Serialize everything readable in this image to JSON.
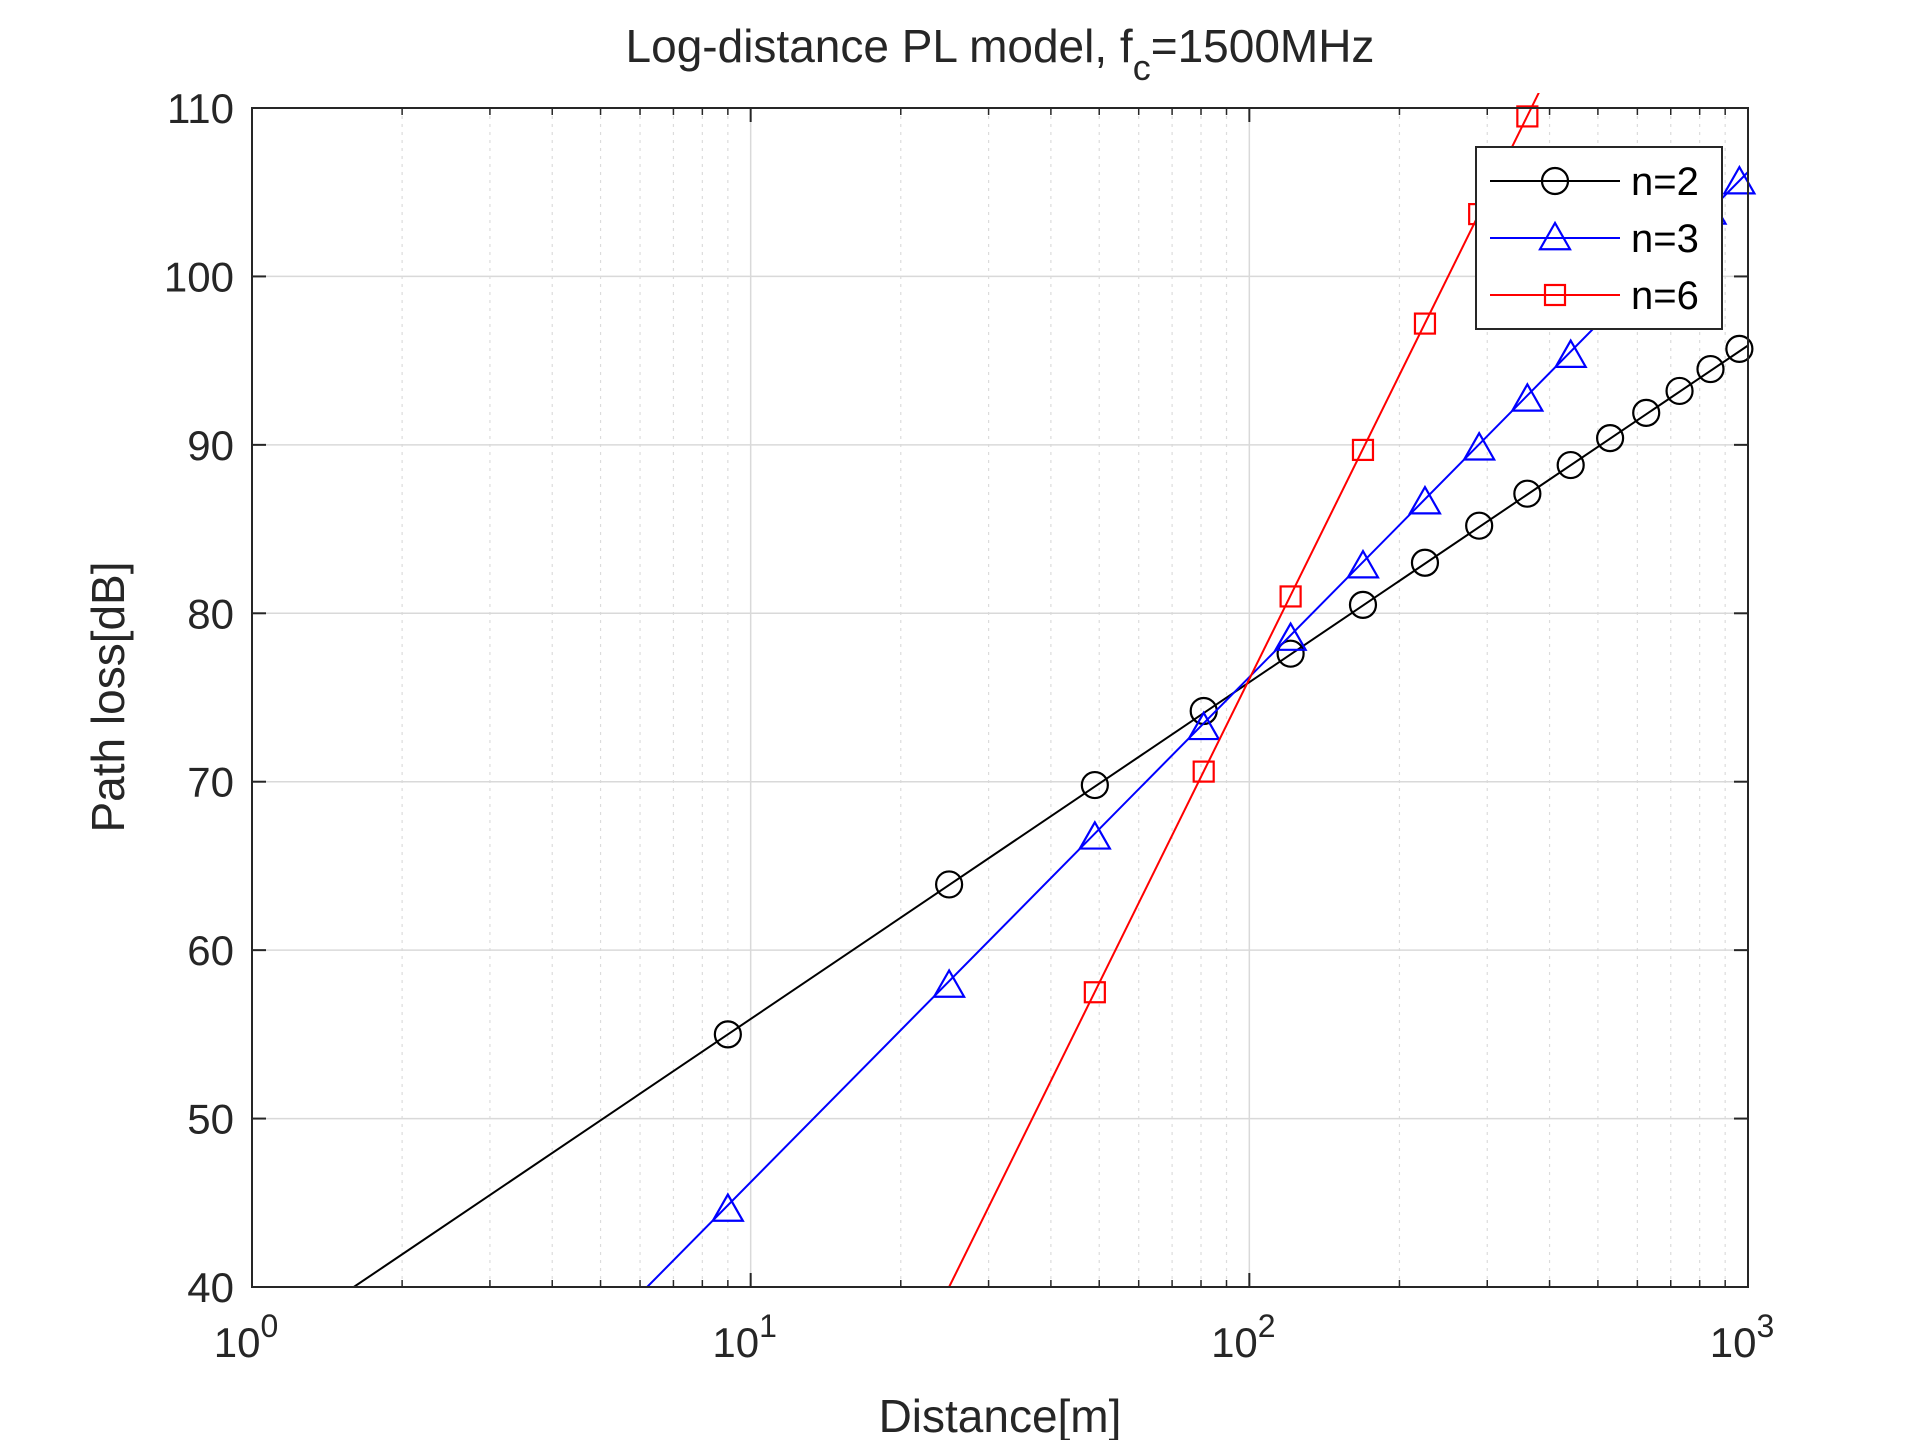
{
  "chart_data": {
    "type": "line",
    "title": "Log-distance PL model, f",
    "title_sub": "c",
    "title_tail": "=1500MHz",
    "xlabel": "Distance[m]",
    "ylabel": "Path loss[dB]",
    "xscale": "log",
    "xlim": [
      1,
      1000
    ],
    "ylim": [
      40,
      110
    ],
    "grid": true,
    "minor_grid": true,
    "x_ticks": [
      1,
      10,
      100,
      1000
    ],
    "x_tick_base": "10",
    "x_tick_exponents": [
      "0",
      "1",
      "2",
      "3"
    ],
    "y_ticks": [
      40,
      50,
      60,
      70,
      80,
      90,
      100,
      110
    ],
    "y_tick_labels": [
      "40",
      "50",
      "60",
      "70",
      "80",
      "90",
      "100",
      "110"
    ],
    "legend_position": "top-right",
    "series": [
      {
        "name": "n=2",
        "color": "#000000",
        "marker": "circle",
        "line_x": [
          1.6,
          1000
        ],
        "line_y": [
          40,
          95.9
        ],
        "marker_x": [
          9,
          25,
          49,
          81,
          121,
          169,
          225,
          289,
          361,
          441,
          529,
          625,
          729,
          841,
          961
        ],
        "marker_y": [
          55.0,
          63.9,
          69.8,
          74.2,
          77.6,
          80.5,
          83.0,
          85.2,
          87.1,
          88.8,
          90.4,
          91.9,
          93.2,
          94.5,
          95.7
        ]
      },
      {
        "name": "n=3",
        "color": "#0000ff",
        "marker": "triangle",
        "line_x": [
          6.2,
          1000
        ],
        "line_y": [
          40,
          106.2
        ],
        "marker_x": [
          9,
          25,
          49,
          81,
          121,
          169,
          225,
          289,
          361,
          441,
          529,
          625,
          729,
          841,
          961
        ],
        "marker_y": [
          44.6,
          57.9,
          66.7,
          73.2,
          78.5,
          82.8,
          86.6,
          89.8,
          92.7,
          95.3,
          97.7,
          99.9,
          101.9,
          103.8,
          105.6
        ]
      },
      {
        "name": "n=6",
        "color": "#ff0000",
        "marker": "square",
        "line_x": [
          25,
          400
        ],
        "line_y": [
          40,
          112.2
        ],
        "marker_x": [
          49,
          81,
          121,
          169,
          225,
          289,
          361
        ],
        "marker_y": [
          57.5,
          70.6,
          81.0,
          89.7,
          97.2,
          103.7,
          109.5
        ]
      }
    ]
  }
}
